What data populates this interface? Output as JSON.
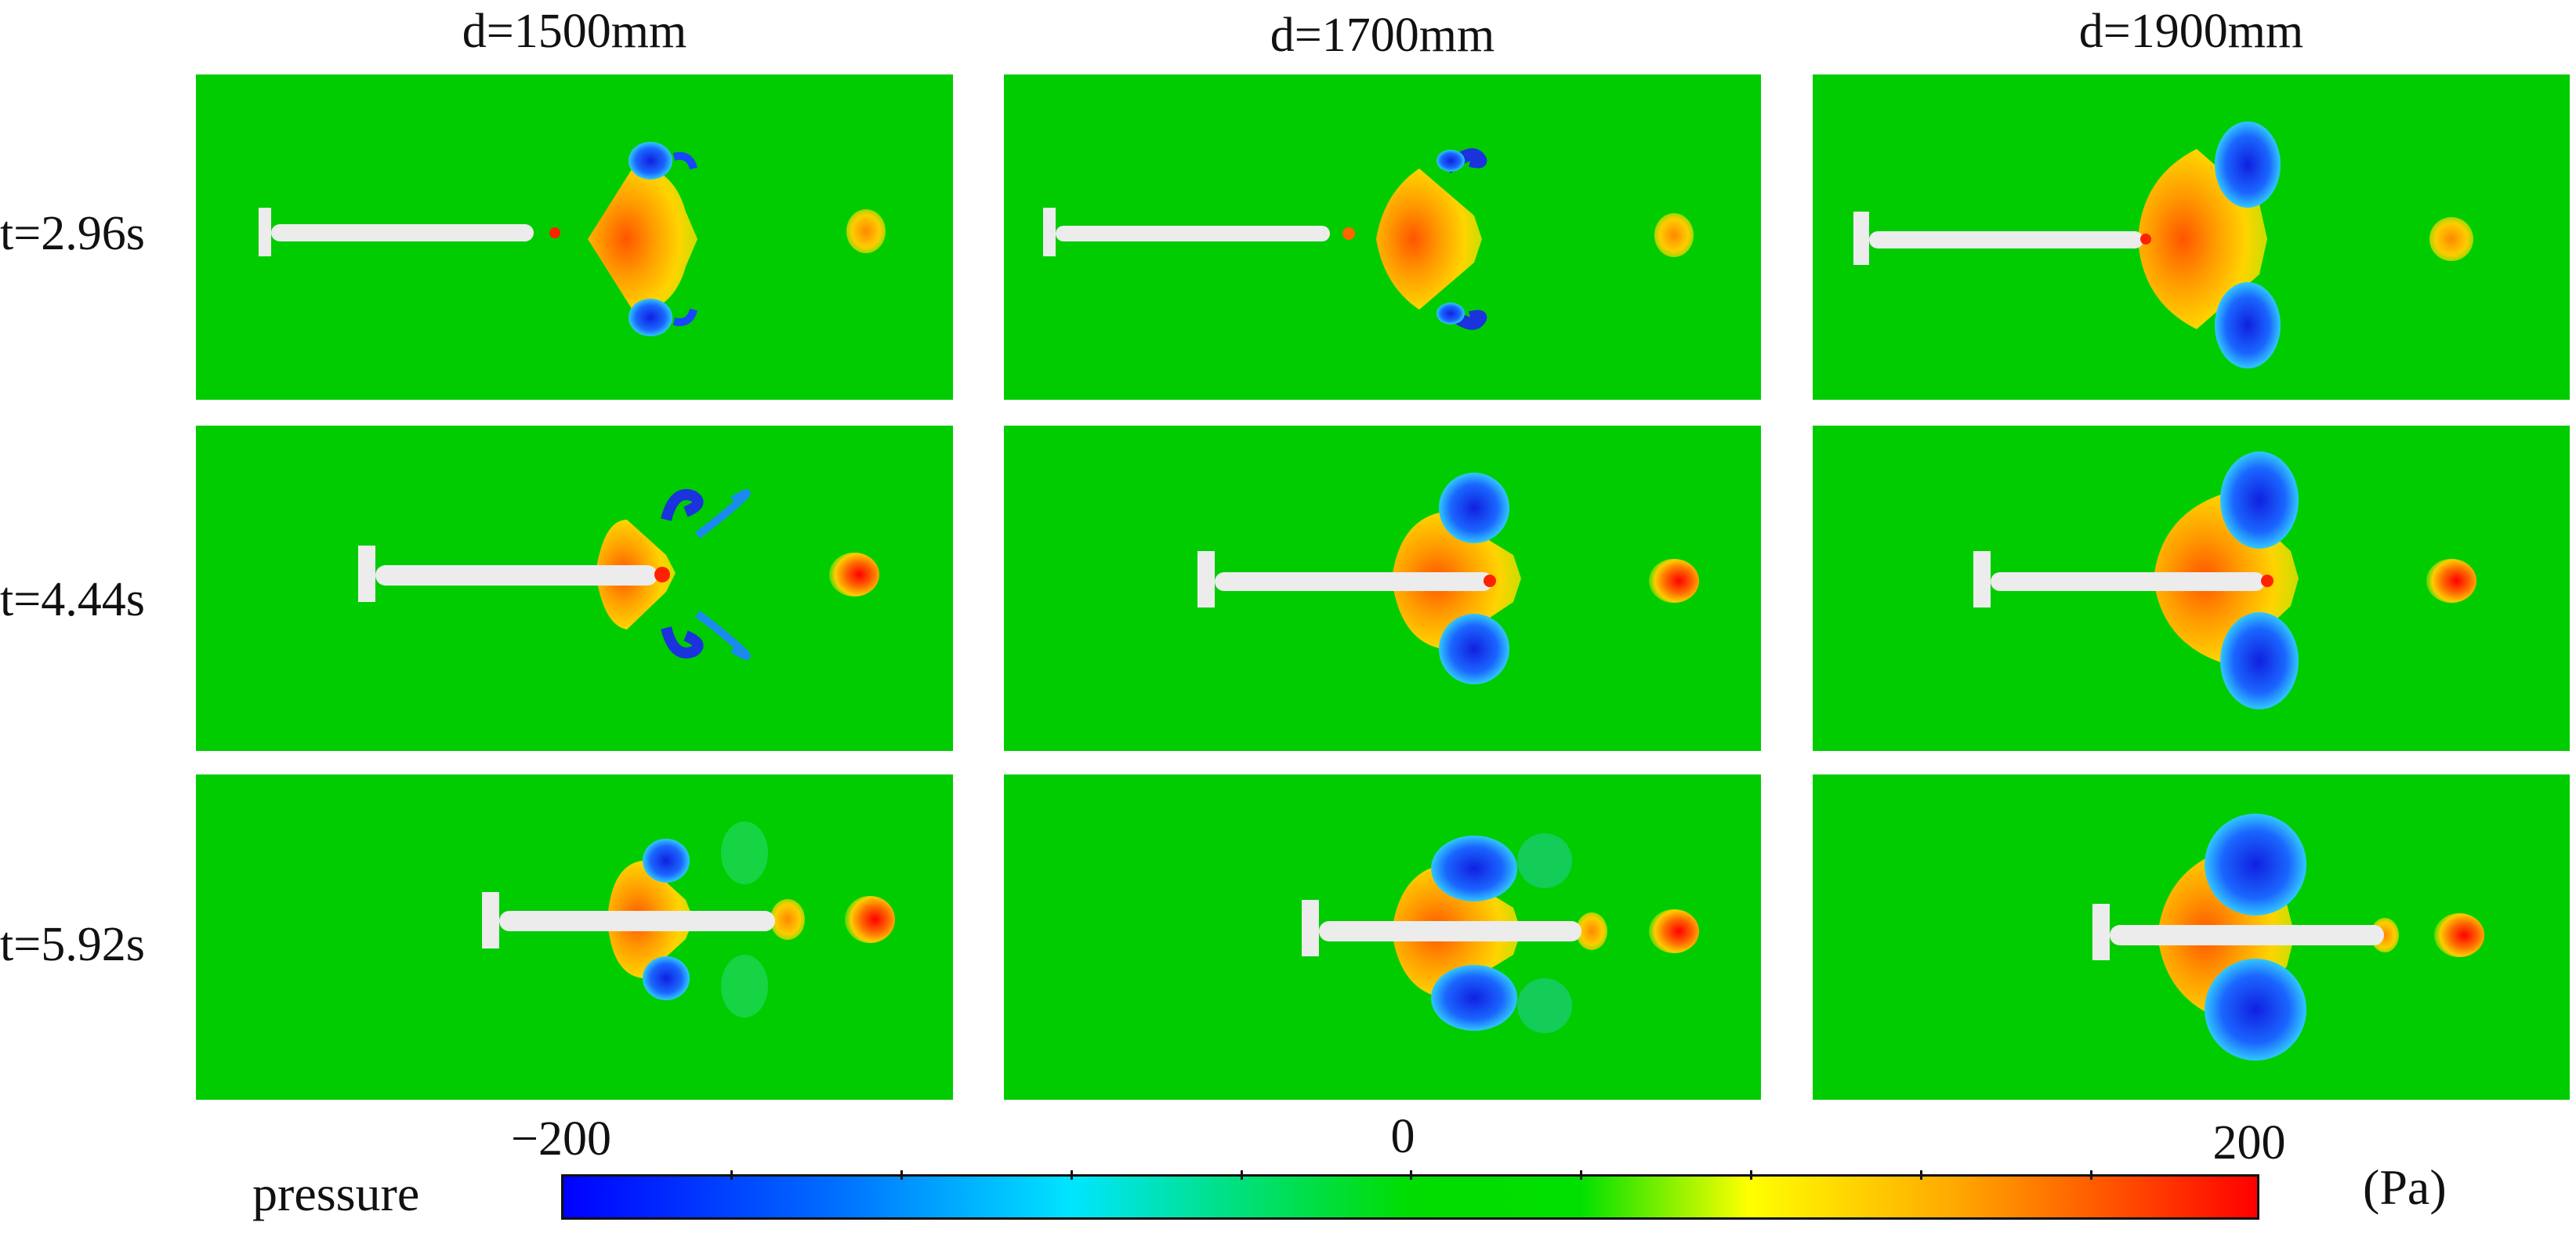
{
  "columns": {
    "c1": "d=1500mm",
    "c2": "d=1700mm",
    "c3": "d=1900mm"
  },
  "rows": {
    "r1": "t=2.96s",
    "r2": "t=4.44s",
    "r3": "t=5.92s"
  },
  "legend": {
    "title": "pressure",
    "unit": "(Pa)",
    "ticks": {
      "min": "−200",
      "mid": "0",
      "max": "200"
    },
    "range": [
      -200,
      200
    ],
    "colors": [
      "#0000ff",
      "#00e5ff",
      "#00dd00",
      "#ffff00",
      "#ff0000"
    ]
  },
  "colors": {
    "background_field": "#00cc00",
    "body": "#ececec",
    "positive": "#ff4400",
    "negative": "#1a33dd"
  }
}
